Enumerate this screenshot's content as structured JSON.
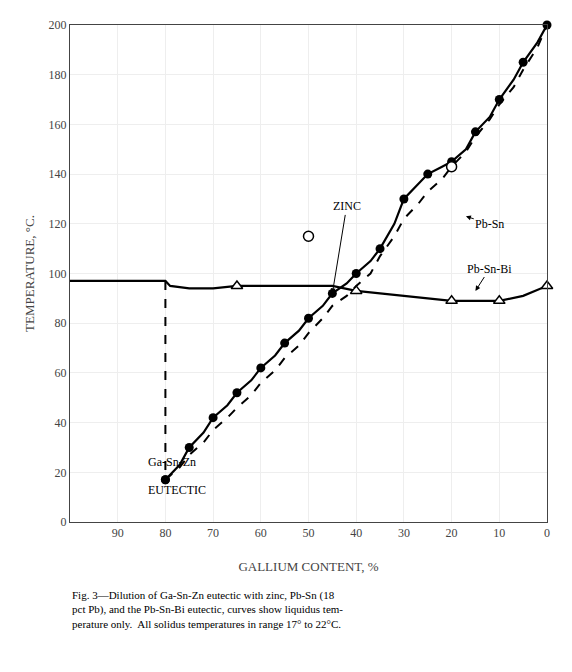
{
  "chart_data": {
    "type": "line",
    "xlabel": "GALLIUM CONTENT, %",
    "ylabel": "TEMPERATURE, °C.",
    "caption": "Fig. 3—Dilution of Ga-Sn-Zn eutectic with zinc, Pb-Sn (18\npct Pb), and the Pb-Sn-Bi eutectic, curves show liquidus tem-\nperature only.  All solidus temperatures in range 17° to 22°C.",
    "xlim": [
      100,
      0
    ],
    "ylim": [
      0,
      200
    ],
    "xticks": [
      90,
      80,
      70,
      60,
      50,
      40,
      30,
      20,
      10,
      0
    ],
    "yticks": [
      0,
      20,
      40,
      60,
      80,
      100,
      120,
      140,
      160,
      180,
      200
    ],
    "grid": true,
    "series": [
      {
        "type": "line",
        "color": "black",
        "line_style": "solid",
        "x": [
          100,
          85,
          80.5,
          80,
          79,
          75,
          70,
          65,
          60,
          55,
          50,
          45,
          40,
          35,
          30,
          25,
          20,
          15,
          10,
          5,
          0
        ],
        "values": [
          97,
          97,
          97,
          97,
          95,
          94,
          94,
          95,
          95,
          95,
          95,
          95,
          93,
          92,
          91,
          90,
          89,
          89,
          89,
          91,
          95
        ]
      },
      {
        "type": "scatter",
        "color": "black",
        "marker": "triangle-open",
        "x": [
          65,
          40,
          20,
          10,
          0
        ],
        "values": [
          95,
          93,
          89,
          89,
          95
        ]
      },
      {
        "type": "line",
        "color": "black",
        "line_style": "solid",
        "x": [
          80,
          77,
          75,
          72,
          70,
          67,
          65,
          62,
          60,
          57,
          55,
          52,
          50,
          47,
          45,
          42,
          40,
          37,
          35,
          32,
          30,
          27,
          25,
          22,
          20,
          17,
          15,
          12,
          10,
          7,
          5,
          2,
          0
        ],
        "values": [
          17,
          23,
          30,
          36,
          42,
          47,
          52,
          57,
          62,
          67,
          72,
          77,
          82,
          87,
          92,
          96,
          100,
          105,
          110,
          120,
          130,
          136,
          140,
          143,
          145,
          150,
          157,
          163,
          170,
          178,
          185,
          193,
          200
        ]
      },
      {
        "type": "scatter",
        "color": "black",
        "marker": "dot",
        "x": [
          80,
          75,
          70,
          65,
          60,
          55,
          50,
          45,
          40,
          35,
          30,
          25,
          20,
          15,
          10,
          5,
          0
        ],
        "values": [
          17,
          30,
          42,
          52,
          62,
          72,
          82,
          92,
          100,
          110,
          130,
          140,
          145,
          157,
          170,
          185,
          200
        ]
      },
      {
        "type": "line",
        "color": "black",
        "line_style": "dash",
        "x": [
          80,
          77,
          75,
          72,
          70,
          67,
          65,
          62,
          60,
          57,
          55,
          52,
          50,
          47,
          45,
          42,
          40,
          37,
          35,
          32,
          30,
          27,
          25,
          22,
          20,
          17,
          15,
          12,
          10,
          7,
          5,
          2,
          0
        ],
        "values": [
          17,
          22,
          27,
          32,
          37,
          42,
          46,
          51,
          56,
          61,
          66,
          71,
          76,
          82,
          87,
          91,
          95,
          100,
          107,
          115,
          122,
          128,
          133,
          138,
          143,
          149,
          155,
          162,
          168,
          175,
          182,
          191,
          200
        ]
      },
      {
        "type": "scatter",
        "color": "black",
        "marker": "circle-open",
        "x": [
          50,
          20
        ],
        "values": [
          115,
          143
        ]
      },
      {
        "type": "line",
        "color": "black",
        "line_style": "dash",
        "x": [
          80,
          80
        ],
        "values": [
          97,
          17
        ]
      },
      {
        "type": "line",
        "color": "black",
        "line_style": "dash",
        "x": [
          100,
          80
        ],
        "values": [
          97,
          97
        ]
      },
      {
        "type": "scatter",
        "color": "black",
        "marker": "dot",
        "x": [
          80
        ],
        "values": [
          17
        ]
      }
    ],
    "annotations": [
      {
        "text": "Ga-Sn-Zn",
        "x": 84,
        "y": 24
      },
      {
        "text": "EUTECTIC",
        "x": 84,
        "y": 13
      },
      {
        "text": "ZINC",
        "x": 45,
        "y": 92,
        "text_x": 42,
        "text_y": 127
      },
      {
        "text": "Pb-Sn",
        "x": 17,
        "y": 123,
        "text_x": 12,
        "text_y": 120
      },
      {
        "text": "Pb-Sn-Bi",
        "x": 15,
        "y": 93,
        "text_x": 12,
        "text_y": 102
      }
    ]
  }
}
